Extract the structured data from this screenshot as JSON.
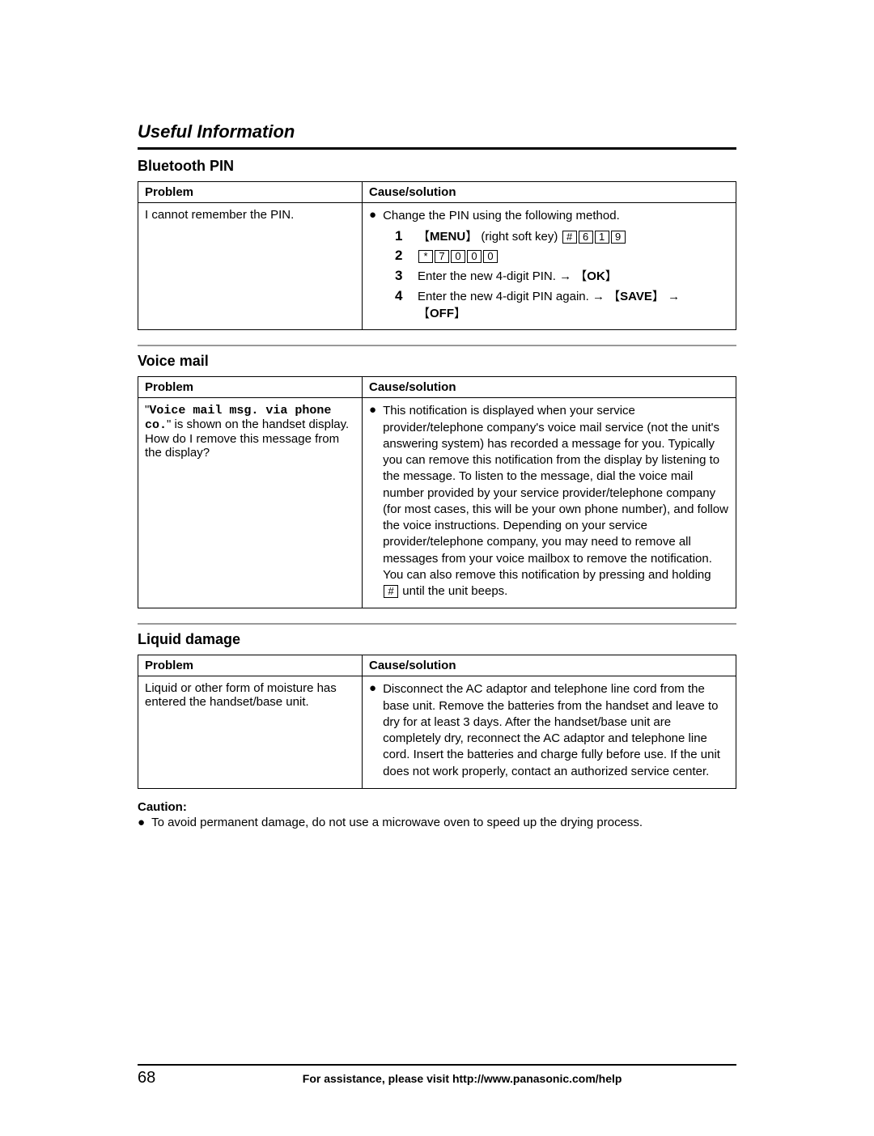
{
  "header": {
    "title": "Useful Information"
  },
  "sections": {
    "bluetooth": {
      "title": "Bluetooth PIN",
      "col_problem": "Problem",
      "col_solution": "Cause/solution",
      "problem": "I cannot remember the PIN.",
      "bullet": "Change the PIN using the following method.",
      "steps": {
        "s1_menu": "MENU",
        "s1_rest": " (right soft key) ",
        "s1_keys": [
          "#",
          "6",
          "1",
          "9"
        ],
        "s2_keys": [
          "*",
          "7",
          "0",
          "0",
          "0"
        ],
        "s3_pre": "Enter the new 4-digit PIN. ",
        "s3_ok": "OK",
        "s4_pre": "Enter the new 4-digit PIN again. ",
        "s4_save": "SAVE",
        "s4_off": "OFF"
      }
    },
    "voicemail": {
      "title": "Voice mail",
      "col_problem": "Problem",
      "col_solution": "Cause/solution",
      "problem_mono": "Voice mail msg. via phone co.",
      "problem_rest": "\" is shown on the handset display. How do I remove this message from the display?",
      "solution_pre": "This notification is displayed when your service provider/telephone company's voice mail service (not the unit's answering system) has recorded a message for you. Typically you can remove this notification from the display by listening to the message. To listen to the message, dial the voice mail number provided by your service provider/telephone company (for most cases, this will be your own phone number), and follow the voice instructions. Depending on your service provider/telephone company, you may need to remove all messages from your voice mailbox to remove the notification. You can also remove this notification by pressing and holding ",
      "solution_post": " until the unit beeps."
    },
    "liquid": {
      "title": "Liquid damage",
      "col_problem": "Problem",
      "col_solution": "Cause/solution",
      "problem": "Liquid or other form of moisture has entered the handset/base unit.",
      "solution": "Disconnect the AC adaptor and telephone line cord from the base unit. Remove the batteries from the handset and leave to dry for at least 3 days. After the handset/base unit are completely dry, reconnect the AC adaptor and telephone line cord. Insert the batteries and charge fully before use. If the unit does not work properly, contact an authorized service center."
    }
  },
  "caution": {
    "label": "Caution:",
    "text": "To avoid permanent damage, do not use a microwave oven to speed up the drying process."
  },
  "footer": {
    "page": "68",
    "text": "For assistance, please visit http://www.panasonic.com/help"
  }
}
